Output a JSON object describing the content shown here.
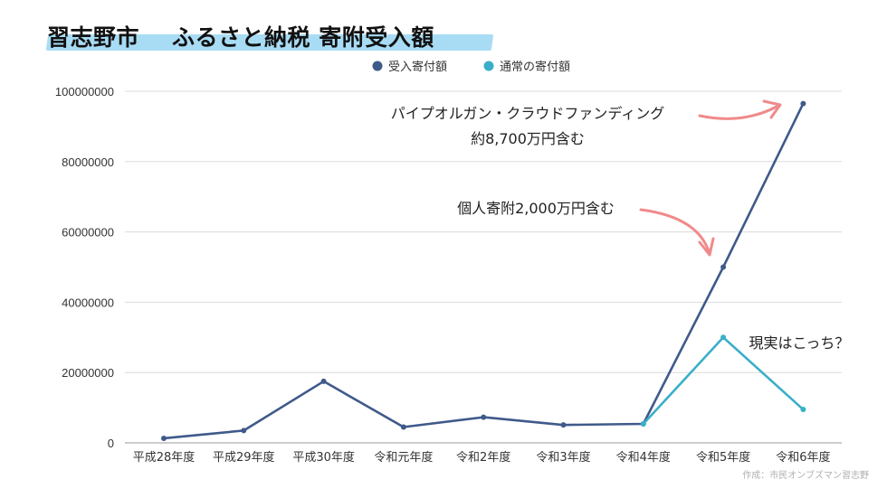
{
  "title_part1": "習志野市",
  "title_part2": "ふるさと納税 寄附受入額",
  "chart_data": {
    "type": "line",
    "title": "習志野市　ふるさと納税 寄附受入額",
    "categories": [
      "平成28年度",
      "平成29年度",
      "平成30年度",
      "令和元年度",
      "令和2年度",
      "令和3年度",
      "令和4年度",
      "令和5年度",
      "令和6年度"
    ],
    "series": [
      {
        "name": "受入寄付額",
        "color": "#3f5a8a",
        "values": [
          1300000,
          3500000,
          17500000,
          4500000,
          7300000,
          5100000,
          5400000,
          50000000,
          96500000
        ]
      },
      {
        "name": "通常の寄付額",
        "color": "#3aafc8",
        "values": [
          null,
          null,
          null,
          null,
          null,
          null,
          5400000,
          30000000,
          9500000
        ]
      }
    ],
    "ylim": [
      0,
      100000000
    ],
    "yticks": [
      "0",
      "20000000",
      "40000000",
      "60000000",
      "80000000",
      "100000000"
    ],
    "ytick_values": [
      0,
      20000000,
      40000000,
      60000000,
      80000000,
      100000000
    ],
    "grid": true,
    "legend": "top-center",
    "annotations": [
      {
        "text_lines": [
          "パイプオルガン・クラウドファンディング",
          "約8,700万円含む"
        ],
        "target": "令和6年度"
      },
      {
        "text_lines": [
          "個人寄附2,000万円含む"
        ],
        "target": "令和5年度"
      },
      {
        "text_lines": [
          "現実はこっち？"
        ],
        "target": "令和5年度"
      }
    ]
  },
  "arrow_color": "#f08a8a",
  "credit": "作成：市民オンブズマン習志野"
}
